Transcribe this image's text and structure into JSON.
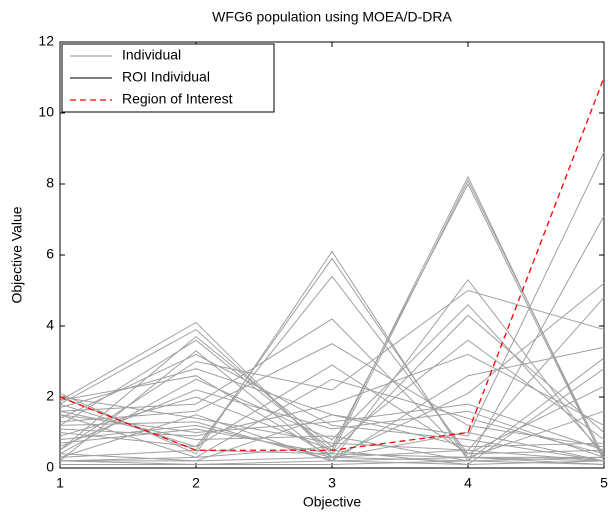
{
  "chart_data": {
    "type": "parallel",
    "title": "WFG6 population using MOEA/D-DRA",
    "x_label": "Objective",
    "y_label": "Objective Value",
    "xlim": [
      1,
      5
    ],
    "xticks": [
      1,
      2,
      3,
      4,
      5
    ],
    "ylim": [
      0,
      12
    ],
    "yticks": [
      0,
      2,
      4,
      6,
      8,
      10,
      12
    ],
    "legend": "upper left",
    "series": [
      {
        "name": "Individual",
        "color": "#a0a0a0",
        "dash": false,
        "lines": [
          [
            2.1,
            0.4,
            6.1,
            0.2,
            0.3
          ],
          [
            2.0,
            0.5,
            5.9,
            0.3,
            0.2
          ],
          [
            1.9,
            4.1,
            0.3,
            0.5,
            0.2
          ],
          [
            1.8,
            3.9,
            0.4,
            0.3,
            0.3
          ],
          [
            1.2,
            3.6,
            0.5,
            8.2,
            0.2
          ],
          [
            0.3,
            0.5,
            0.4,
            8.1,
            0.3
          ],
          [
            1.5,
            0.3,
            0.6,
            8.0,
            0.2
          ],
          [
            0.2,
            3.3,
            0.2,
            5.3,
            0.3
          ],
          [
            1.0,
            0.6,
            5.4,
            0.4,
            0.5
          ],
          [
            0.5,
            3.0,
            2.2,
            5.0,
            3.9
          ],
          [
            1.7,
            2.8,
            1.5,
            0.9,
            8.9
          ],
          [
            0.8,
            1.2,
            0.3,
            0.2,
            7.1
          ],
          [
            0.4,
            2.5,
            0.8,
            4.6,
            0.4
          ],
          [
            1.3,
            1.6,
            3.5,
            1.2,
            0.6
          ],
          [
            0.2,
            0.2,
            0.3,
            2.1,
            5.2
          ],
          [
            1.6,
            1.8,
            4.2,
            0.3,
            0.1
          ],
          [
            2.0,
            1.4,
            0.7,
            0.5,
            4.8
          ],
          [
            0.6,
            2.2,
            1.1,
            1.6,
            0.3
          ],
          [
            1.1,
            0.9,
            1.8,
            3.2,
            1.2
          ],
          [
            0.3,
            1.5,
            0.2,
            2.6,
            3.4
          ],
          [
            1.4,
            3.2,
            1.2,
            0.8,
            0.2
          ],
          [
            0.9,
            2.0,
            0.5,
            0.1,
            2.8
          ],
          [
            0.2,
            0.3,
            2.5,
            1.4,
            0.4
          ],
          [
            1.6,
            0.8,
            0.9,
            0.2,
            3.1
          ],
          [
            0.7,
            1.1,
            0.4,
            4.3,
            1.0
          ],
          [
            1.9,
            2.6,
            0.3,
            1.0,
            0.2
          ],
          [
            0.4,
            0.2,
            1.5,
            0.6,
            0.7
          ],
          [
            1.2,
            1.3,
            0.2,
            0.3,
            1.6
          ],
          [
            0.1,
            0.1,
            0.1,
            0.2,
            0.1
          ],
          [
            0.2,
            0.1,
            0.2,
            0.1,
            0.2
          ],
          [
            1.5,
            1.0,
            1.3,
            1.8,
            0.5
          ],
          [
            0.5,
            3.7,
            0.6,
            3.6,
            0.8
          ],
          [
            1.8,
            0.6,
            2.9,
            0.4,
            2.3
          ]
        ]
      },
      {
        "name": "ROI Individual",
        "color": "#303030",
        "dash": false,
        "lines": []
      },
      {
        "name": "Region of Interest",
        "color": "#ff0000",
        "dash": true,
        "lines": [
          [
            2.0,
            0.5,
            0.5,
            1.0,
            11.0
          ]
        ]
      }
    ]
  }
}
